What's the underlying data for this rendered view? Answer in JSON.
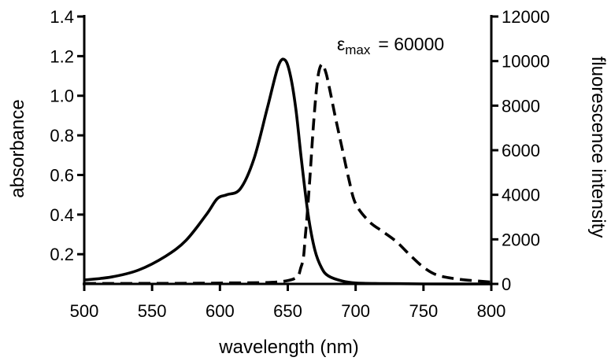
{
  "chart_data": {
    "type": "line",
    "title": "",
    "xlabel": "wavelength (nm)",
    "ylabel_left": "absorbance",
    "ylabel_right": "fluorescence intensity",
    "x_ticks": [
      500,
      550,
      600,
      650,
      700,
      750,
      800
    ],
    "y_left_ticks": [
      0.2,
      0.4,
      0.6,
      0.8,
      1.0,
      1.2,
      1.4
    ],
    "y_left_tick_labels": [
      "0.2",
      "0.4",
      "0.6",
      "0.8",
      "1.0",
      "1.2",
      "1.4"
    ],
    "y_right_ticks": [
      0,
      2000,
      4000,
      6000,
      8000,
      10000,
      12000
    ],
    "xlim": [
      500,
      800
    ],
    "ylim_left": [
      0.05,
      1.4
    ],
    "ylim_right": [
      0,
      12000
    ],
    "grid": false,
    "annotation": {
      "symbol": "ε",
      "subscript": "max",
      "value": "= 60000"
    },
    "series": [
      {
        "axis": "left",
        "style": "solid",
        "color": "#000000",
        "x": [
          500,
          520,
          540,
          560,
          575,
          590,
          598,
          605,
          615,
          625,
          635,
          643,
          648,
          652,
          656,
          660,
          665,
          670,
          675,
          680,
          690,
          700,
          720,
          750,
          800
        ],
        "y": [
          0.07,
          0.085,
          0.12,
          0.19,
          0.27,
          0.4,
          0.48,
          0.5,
          0.53,
          0.68,
          0.94,
          1.15,
          1.18,
          1.1,
          0.93,
          0.68,
          0.4,
          0.22,
          0.13,
          0.09,
          0.065,
          0.055,
          0.052,
          0.05,
          0.05
        ]
      },
      {
        "axis": "right",
        "style": "dashed",
        "color": "#000000",
        "x": [
          500,
          600,
          650,
          660,
          663,
          666,
          669,
          672,
          675,
          678,
          681,
          685,
          690,
          695,
          700,
          710,
          720,
          730,
          740,
          750,
          760,
          775,
          800
        ],
        "y": [
          20,
          40,
          150,
          800,
          2200,
          4500,
          7200,
          9200,
          9850,
          9500,
          8700,
          7500,
          6100,
          4700,
          3600,
          2800,
          2350,
          1900,
          1300,
          750,
          400,
          220,
          80
        ]
      }
    ]
  }
}
